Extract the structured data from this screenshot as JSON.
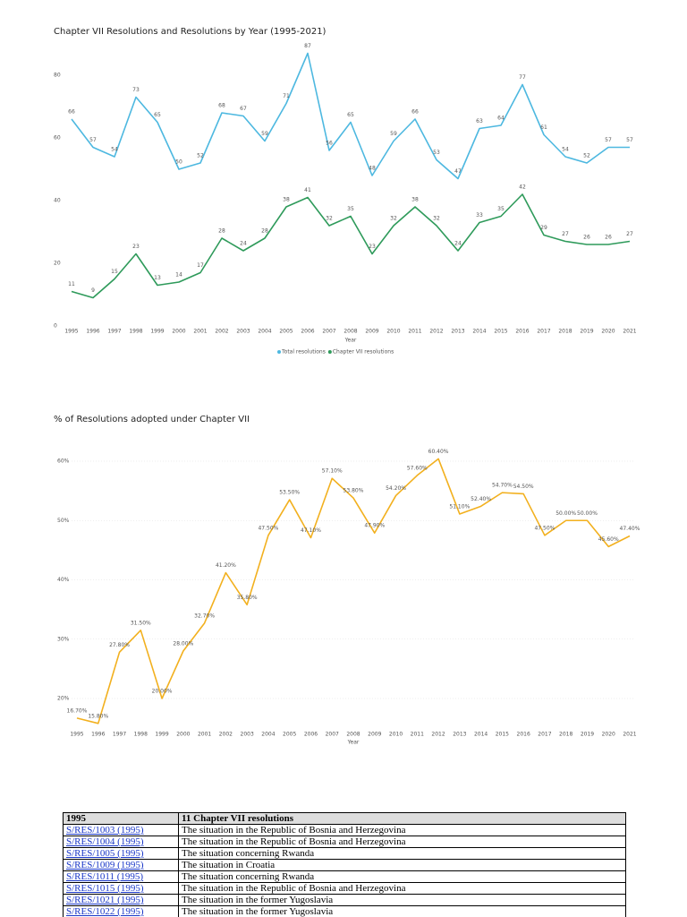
{
  "chart_data": [
    {
      "type": "line",
      "title": "Chapter VII Resolutions and Resolutions by Year (1995-2021)",
      "xlabel": "Year",
      "categories": [
        "1995",
        "1996",
        "1997",
        "1998",
        "1999",
        "2000",
        "2001",
        "2002",
        "2003",
        "2004",
        "2005",
        "2006",
        "2007",
        "2008",
        "2009",
        "2010",
        "2011",
        "2012",
        "2013",
        "2014",
        "2015",
        "2016",
        "2017",
        "2018",
        "2019",
        "2020",
        "2021"
      ],
      "series": [
        {
          "name": "Total resolutions",
          "color": "#4db8e0",
          "values": [
            66,
            57,
            54,
            73,
            65,
            50,
            52,
            68,
            67,
            59,
            71,
            87,
            56,
            65,
            48,
            59,
            66,
            53,
            47,
            63,
            64,
            77,
            61,
            54,
            52,
            57,
            57
          ]
        },
        {
          "name": "Chapter VII resolutions",
          "color": "#2e9a5a",
          "values": [
            11,
            9,
            15,
            23,
            13,
            14,
            17,
            28,
            24,
            28,
            38,
            41,
            32,
            35,
            23,
            32,
            38,
            32,
            24,
            33,
            35,
            42,
            29,
            27,
            26,
            26,
            27
          ]
        }
      ],
      "ylim": [
        0,
        88
      ],
      "yticks": [
        0,
        20,
        40,
        60,
        80
      ],
      "grid": false
    },
    {
      "type": "line",
      "title": "% of Resolutions adopted under Chapter VII",
      "xlabel": "Year",
      "categories": [
        "1995",
        "1996",
        "1997",
        "1998",
        "1999",
        "2000",
        "2001",
        "2002",
        "2003",
        "2004",
        "2005",
        "2006",
        "2007",
        "2008",
        "2009",
        "2010",
        "2011",
        "2012",
        "2013",
        "2014",
        "2015",
        "2016",
        "2017",
        "2018",
        "2019",
        "2020",
        "2021"
      ],
      "color": "#f2b01e",
      "values": [
        16.7,
        15.8,
        27.8,
        31.5,
        20,
        28,
        32.7,
        41.2,
        35.8,
        47.5,
        53.5,
        47.1,
        57.1,
        53.8,
        47.9,
        54.2,
        57.6,
        60.4,
        51.1,
        52.4,
        54.7,
        54.5,
        47.5,
        50,
        50,
        45.6,
        47.4
      ],
      "value_labels": [
        "16.70%",
        "15.80%",
        "27.80%",
        "31.50%",
        "20.00%",
        "28.00%",
        "32.70%",
        "41.20%",
        "35.80%",
        "47.50%",
        "53.50%",
        "47.10%",
        "57.10%",
        "53.80%",
        "47.90%",
        "54.20%",
        "57.60%",
        "60.40%",
        "51.10%",
        "52.40%",
        "54.70%",
        "54.50%",
        "47.50%",
        "50.00%",
        "50.00%",
        "45.60%",
        "47.40%"
      ],
      "ylim": [
        15,
        62
      ],
      "yticks": [
        {
          "value": 20,
          "label": "20%"
        },
        {
          "value": 30,
          "label": "30%"
        },
        {
          "value": 40,
          "label": "40%"
        },
        {
          "value": 50,
          "label": "50%"
        },
        {
          "value": 60,
          "label": "60%"
        }
      ],
      "grid": true
    }
  ],
  "table": {
    "header": [
      "1995",
      "11 Chapter VII resolutions"
    ],
    "rows": [
      [
        "S/RES/1003 (1995)",
        "The situation in the Republic of Bosnia and Herzegovina"
      ],
      [
        "S/RES/1004 (1995)",
        "The situation in the Republic of Bosnia and Herzegovina"
      ],
      [
        "S/RES/1005 (1995)",
        "The situation concerning Rwanda"
      ],
      [
        "S/RES/1009 (1995)",
        "The situation in Croatia"
      ],
      [
        "S/RES/1011 (1995)",
        "The situation concerning Rwanda"
      ],
      [
        "S/RES/1015 (1995)",
        "The situation in the Republic of Bosnia and Herzegovina"
      ],
      [
        "S/RES/1021 (1995)",
        "The situation in the former Yugoslavia"
      ],
      [
        "S/RES/1022 (1995)",
        "The situation in the former Yugoslavia"
      ]
    ]
  }
}
